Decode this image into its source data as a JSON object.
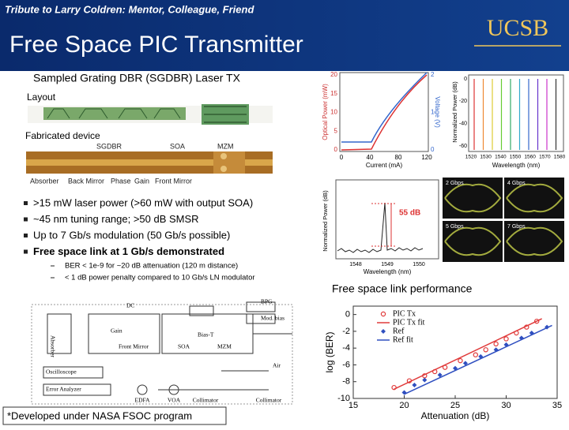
{
  "header": {
    "tribute": "Tribute to Larry Coldren: Mentor, Colleague, Friend",
    "title": "Free Space PIC Transmitter",
    "logo": "UCSB"
  },
  "subtitle": "Sampled Grating DBR (SGDBR) Laser TX",
  "layout_label": "Layout",
  "device": {
    "label": "Fabricated device",
    "sections": [
      "SGDBR",
      "SOA",
      "MZM"
    ],
    "parts": [
      "Absorber",
      "Back Mirror",
      "Phase",
      "Gain",
      "Front Mirror"
    ]
  },
  "bullets": [
    ">15 mW laser power (>60 mW with output SOA)",
    "~45 nm tuning range; >50 dB SMSR",
    "Up to 7 Gb/s modulation (50 Gb/s possible)",
    "Free space link at 1 Gb/s demonstrated"
  ],
  "sub_bullets": [
    "BER < 1e-9 for ~20 dB attenuation (120 m distance)",
    "< 1 dB power penalty compared to 10 Gb/s LN modulator"
  ],
  "liv": {
    "y_label": "Optical Power (mW)",
    "y2_label": "Voltage (V)",
    "x_label": "Current (mA)",
    "yticks": [
      0,
      5,
      10,
      15,
      20
    ],
    "y2ticks": [
      0,
      1,
      2
    ],
    "xticks": [
      0,
      40,
      80,
      120
    ]
  },
  "tuning": {
    "y_label": "Normalized Power (dB)",
    "x_label": "Wavelength (nm)",
    "yticks": [
      0,
      -20,
      -40,
      -60
    ],
    "xticks": [
      1520,
      1530,
      1540,
      1550,
      1560,
      1570,
      1580
    ]
  },
  "smsr": {
    "y_label": "Normalized Power (dB)",
    "x_label": "Wavelength (nm)",
    "xticks": [
      1548,
      1549,
      1550
    ],
    "annotation": "55 dB"
  },
  "eyes": [
    "2 Gbps",
    "4 Gbps",
    "5 Gbps",
    "7 Gbps"
  ],
  "ber_title": "Free space link performance",
  "ber_chart": {
    "type": "scatter",
    "x_label": "Attenuation (dB)",
    "y_label": "log (BER)",
    "xlim": [
      15,
      35
    ],
    "ylim": [
      -10,
      1
    ],
    "xticks": [
      15,
      20,
      25,
      30,
      35
    ],
    "yticks": [
      -10,
      -8,
      -6,
      -4,
      -2,
      0
    ],
    "legend": "upper-left",
    "series": [
      {
        "name": "PIC Tx",
        "color": "#e03a3a",
        "marker": "circle",
        "x": [
          19,
          20.5,
          22,
          23,
          24,
          25.5,
          27,
          28,
          29,
          30,
          31,
          32,
          33
        ],
        "values": [
          -8.7,
          -7.9,
          -7.3,
          -6.8,
          -6.3,
          -5.5,
          -4.8,
          -4.2,
          -3.5,
          -2.9,
          -2.2,
          -1.5,
          -0.8
        ]
      },
      {
        "name": "PIC Tx fit",
        "color": "#e03a3a",
        "marker": "line",
        "x": [
          19,
          33.5
        ],
        "values": [
          -8.9,
          -0.5
        ]
      },
      {
        "name": "Ref",
        "color": "#2f4fc0",
        "marker": "diamond",
        "x": [
          20,
          21,
          22,
          23.5,
          25,
          26,
          27.5,
          29,
          30,
          31.5,
          32.5,
          34
        ],
        "values": [
          -9.3,
          -8.4,
          -7.8,
          -7.2,
          -6.4,
          -5.8,
          -5,
          -4.2,
          -3.6,
          -2.8,
          -2.2,
          -1.5
        ]
      },
      {
        "name": "Ref fit",
        "color": "#2f4fc0",
        "marker": "line",
        "x": [
          20,
          34.5
        ],
        "values": [
          -9.5,
          -1.3
        ]
      }
    ]
  },
  "setup": {
    "labels": [
      "DC",
      "BPG",
      "Bias-T",
      "Mod. bias",
      "Absorber",
      "Gain",
      "Front Mirror",
      "SOA",
      "MZM",
      "Air",
      "Oscilloscope",
      "Error Analyzer",
      "EDFA",
      "VOA",
      "Collimator",
      "Collimator"
    ]
  },
  "footnote": "*Developed under NASA FSOC program"
}
